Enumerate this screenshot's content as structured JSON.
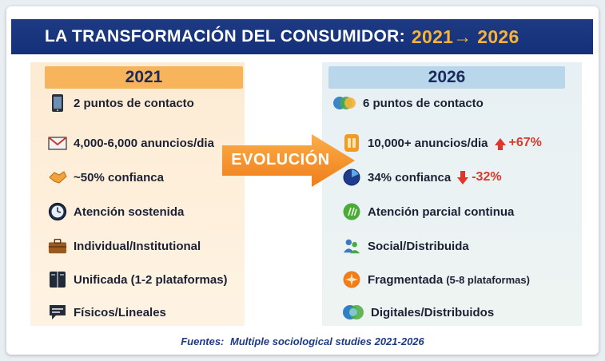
{
  "title": {
    "main": "LA TRANSFORMACIÓN DEL CONSUMIDOR:",
    "range": "2021→ 2026"
  },
  "left": {
    "header": "2021",
    "rows": [
      {
        "icon": "phone-icon",
        "text": "2 puntos de contacto"
      },
      {
        "icon": "envelope-icon",
        "text": "4,000-6,000 anuncios/dia"
      },
      {
        "icon": "handshake-icon",
        "text": "~50% confianca"
      },
      {
        "icon": "clock-icon",
        "text": "Atención sostenida"
      },
      {
        "icon": "briefcase-icon",
        "text": "Individual/Institutional"
      },
      {
        "icon": "book-icon",
        "text": "Unificada (1-2 plataformas)"
      },
      {
        "icon": "speech-bubble-icon",
        "text": "Físicos/Lineales"
      }
    ]
  },
  "right": {
    "header": "2026",
    "rows": [
      {
        "icon": "circles-icon",
        "text": "6 puntos de contacto"
      },
      {
        "icon": "ad-icon",
        "text": "10,000+ anuncios/dia",
        "change": "+67%",
        "direction": "up"
      },
      {
        "icon": "pie-icon",
        "text": "34% confianca",
        "change": "-32%",
        "direction": "down"
      },
      {
        "icon": "green-circle-icon",
        "text": "Atención parcial continua"
      },
      {
        "icon": "people-icon",
        "text": "Social/Distribuida"
      },
      {
        "icon": "starburst-icon",
        "text": "Fragmentada",
        "small": "(5-8 plataformas)"
      },
      {
        "icon": "globe-icon",
        "text": "Digitales/Distribuidos"
      }
    ]
  },
  "evolution": "EVOLUCIÓN",
  "footer": {
    "label": "Fuentes:",
    "text": "Multiple sociological studies 2021-2026"
  },
  "colors": {
    "title_bar": "#1d3a82",
    "accent_orange": "#f8b45a",
    "range_color": "#f6b23d",
    "right_header": "#b9d7ea",
    "change_red": "#d83a2b"
  }
}
